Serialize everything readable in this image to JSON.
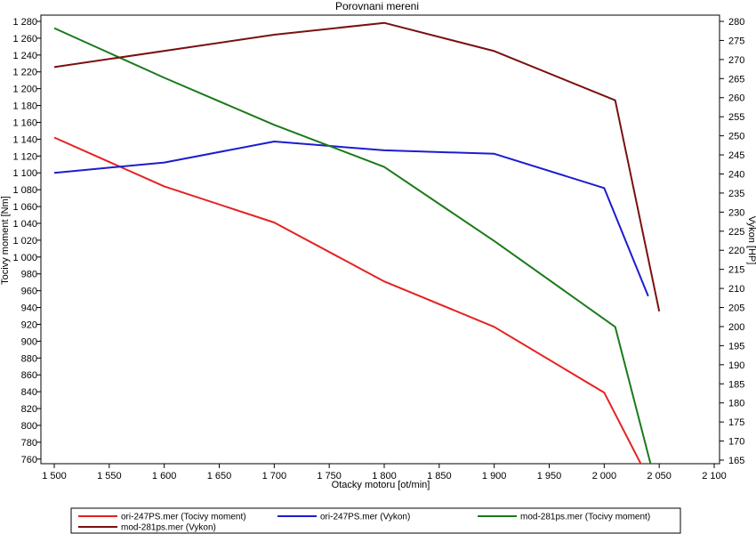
{
  "chart_data": {
    "type": "line",
    "title": "Porovnani mereni",
    "xlabel": "Otacky motoru [ot/min]",
    "ylabel_left": "Tocivy moment [Nm]",
    "ylabel_right": "Vykon [HP]",
    "xlim": [
      1500,
      2100
    ],
    "ylim_left": [
      750,
      1290
    ],
    "ylim_right": [
      165,
      282
    ],
    "x_ticks": [
      1500,
      1550,
      1600,
      1650,
      1700,
      1750,
      1800,
      1850,
      1900,
      1950,
      2000,
      2050,
      2100
    ],
    "x_tick_labels": [
      "1 500",
      "1 550",
      "1 600",
      "1 650",
      "1 700",
      "1 750",
      "1 800",
      "1 850",
      "1 900",
      "1 950",
      "2 000",
      "2 050",
      "2 100"
    ],
    "y_left_ticks": [
      760,
      780,
      800,
      820,
      840,
      860,
      880,
      900,
      920,
      940,
      960,
      980,
      1000,
      1020,
      1040,
      1060,
      1080,
      1100,
      1120,
      1140,
      1160,
      1180,
      1200,
      1220,
      1240,
      1260,
      1280
    ],
    "y_left_tick_labels": [
      "760",
      "780",
      "800",
      "820",
      "840",
      "860",
      "880",
      "900",
      "920",
      "940",
      "960",
      "980",
      "1 000",
      "1 020",
      "1 040",
      "1 060",
      "1 080",
      "1 100",
      "1 120",
      "1 140",
      "1 160",
      "1 180",
      "1 200",
      "1 220",
      "1 240",
      "1 260",
      "1 280"
    ],
    "y_right_ticks": [
      165,
      170,
      175,
      180,
      185,
      190,
      195,
      200,
      205,
      210,
      215,
      220,
      225,
      230,
      235,
      240,
      245,
      250,
      255,
      260,
      265,
      270,
      275,
      280
    ],
    "y_right_tick_labels": [
      "165",
      "170",
      "175",
      "180",
      "185",
      "190",
      "195",
      "200",
      "205",
      "210",
      "215",
      "220",
      "225",
      "230",
      "235",
      "240",
      "245",
      "250",
      "255",
      "260",
      "265",
      "270",
      "275",
      "280"
    ],
    "grid": false,
    "legend_position": "bottom",
    "series": [
      {
        "name": "ori-247PS.mer  (Tocivy moment)",
        "axis": "left",
        "color": "#e52222",
        "x": [
          1500,
          1600,
          1700,
          1800,
          1900,
          2000,
          2035
        ],
        "y": [
          1142,
          1084,
          1041,
          971,
          917,
          839,
          750
        ]
      },
      {
        "name": "ori-247PS.mer  (Vykon)",
        "axis": "right",
        "color": "#1c1ccf",
        "x": [
          1500,
          1600,
          1700,
          1800,
          1900,
          2000,
          2040
        ],
        "y": [
          240.3,
          243,
          248.5,
          246.2,
          245.3,
          236.3,
          208
        ]
      },
      {
        "name": "mod-281ps.mer  (Tocivy moment)",
        "axis": "left",
        "color": "#1a7a1a",
        "x": [
          1500,
          1600,
          1700,
          1800,
          1900,
          2010,
          2043
        ],
        "y": [
          1272,
          1213,
          1157,
          1107,
          1019,
          917,
          750
        ]
      },
      {
        "name": "mod-281ps.mer  (Vykon)",
        "axis": "right",
        "color": "#7a1010",
        "x": [
          1500,
          1700,
          1800,
          1900,
          2010,
          2050
        ],
        "y": [
          268,
          276.5,
          279.6,
          272.2,
          259.3,
          204
        ]
      }
    ]
  }
}
